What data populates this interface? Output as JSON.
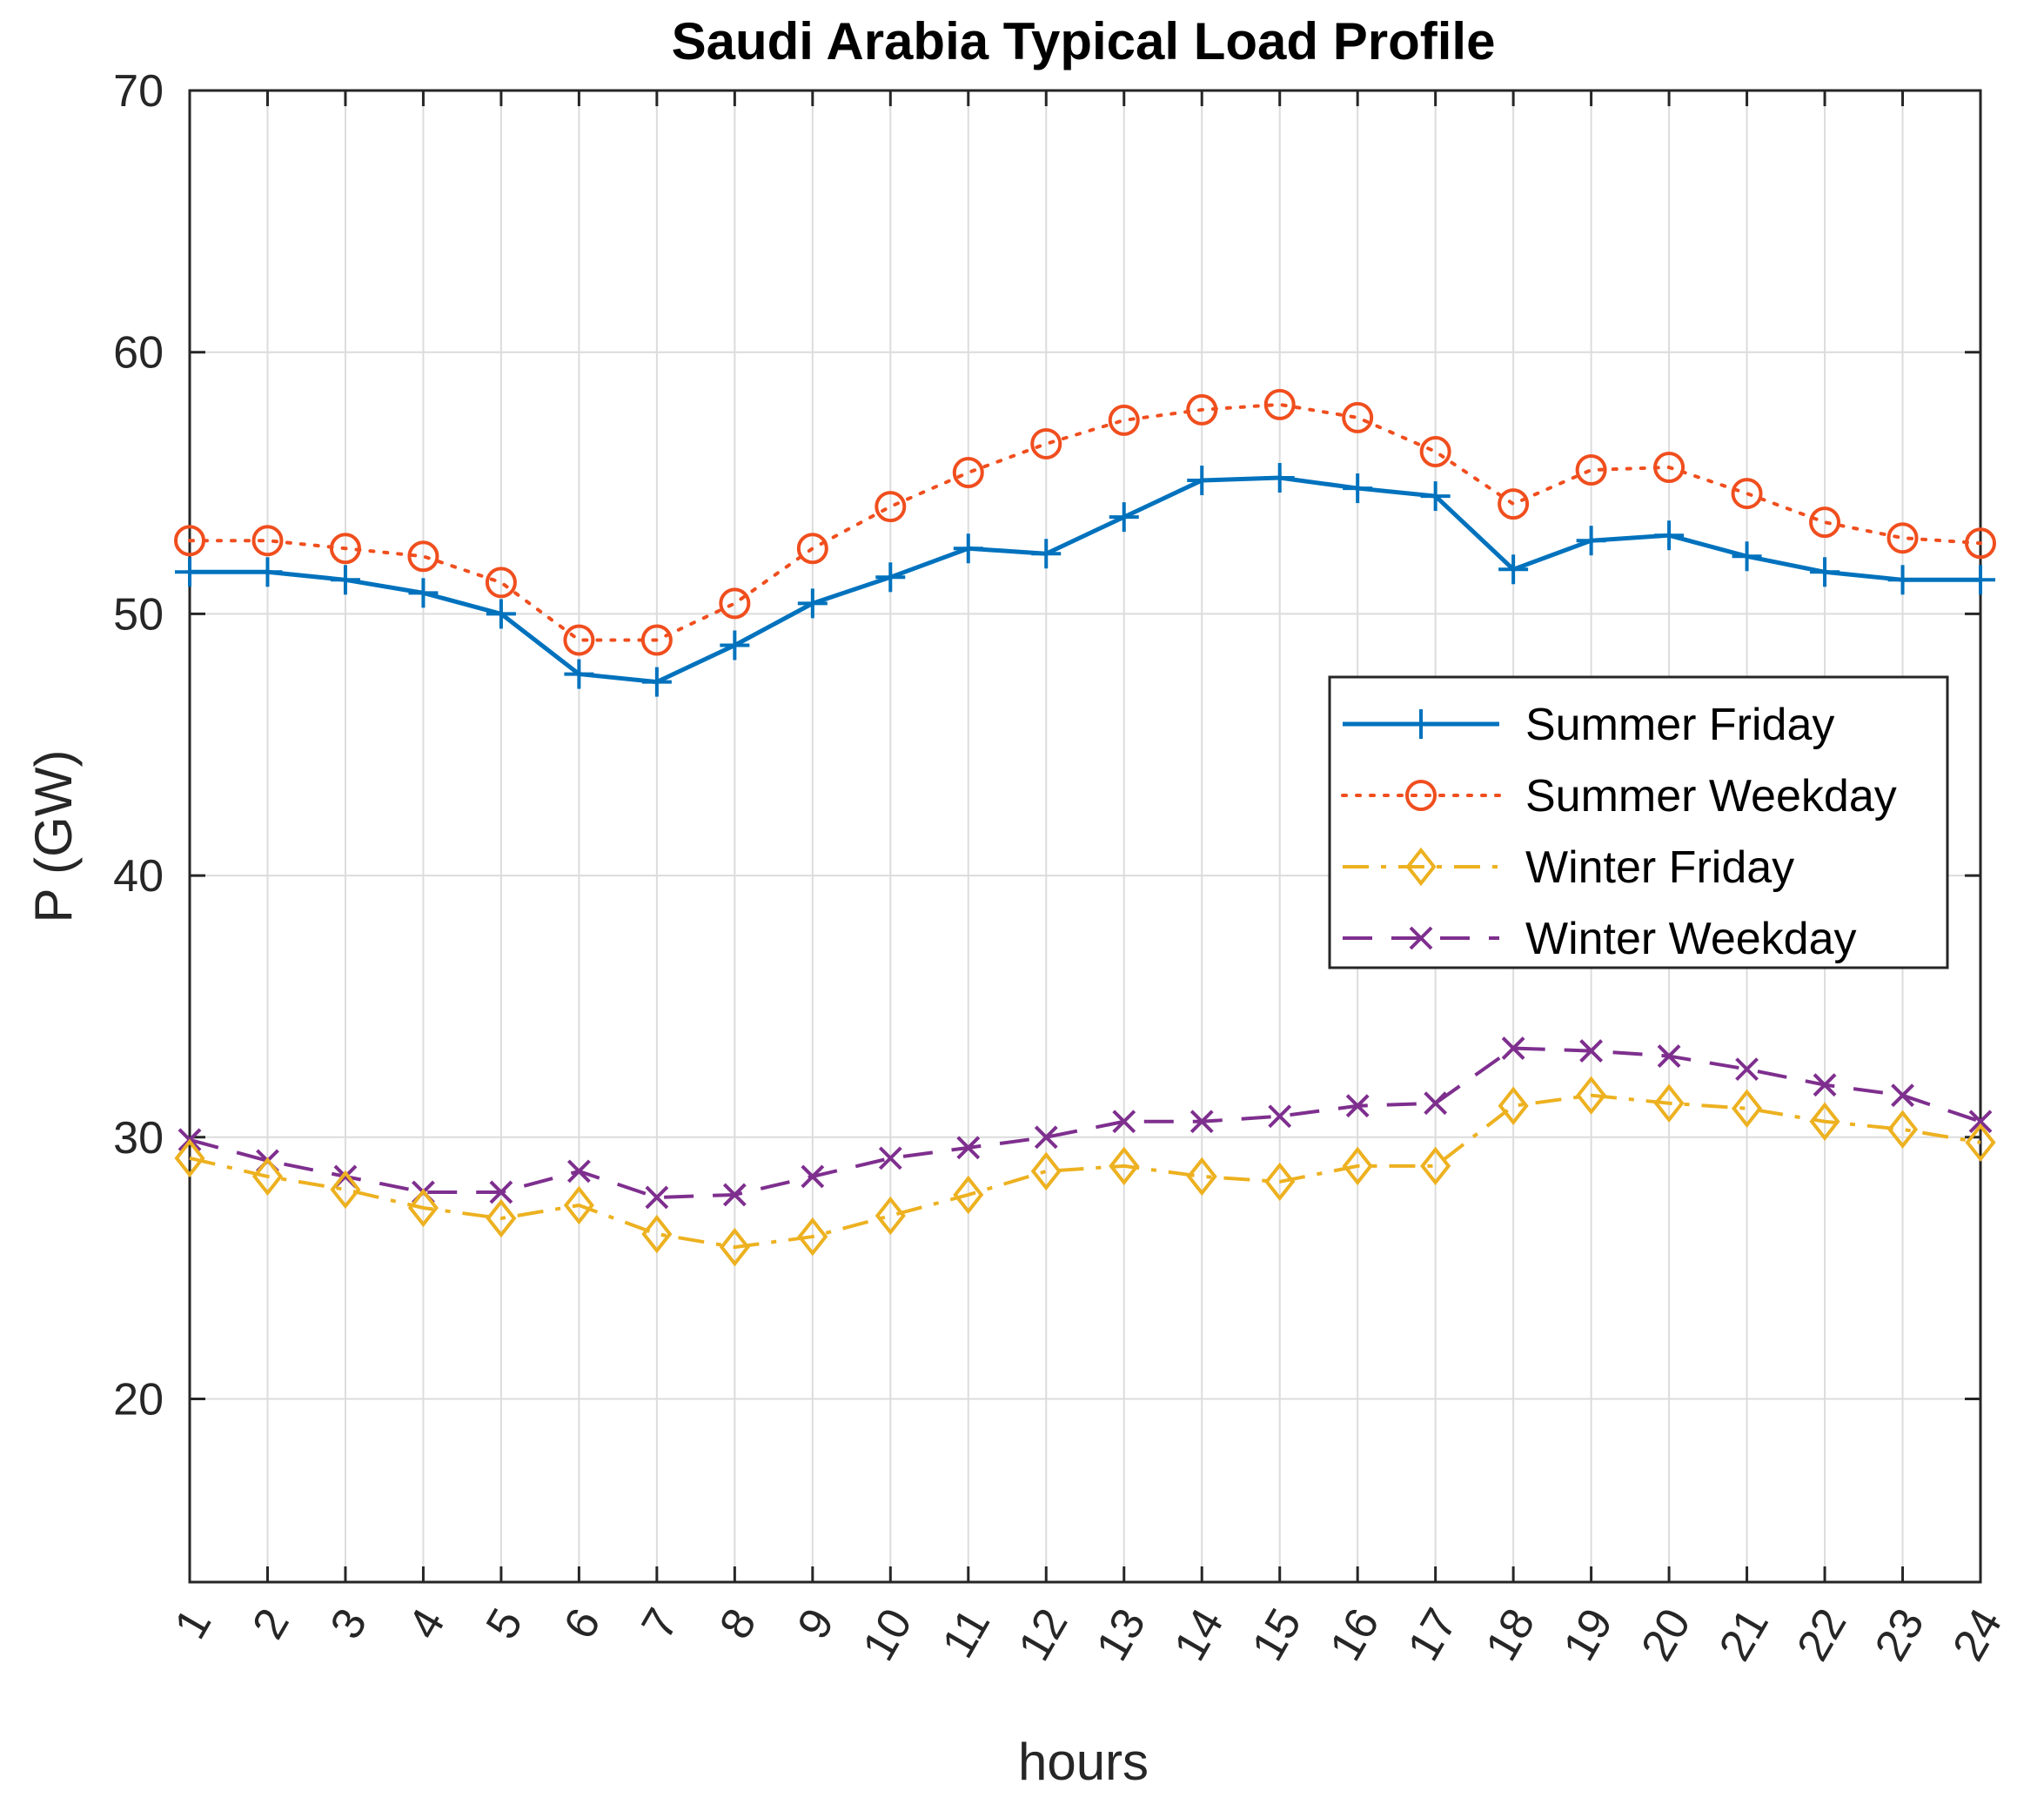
{
  "chart_data": {
    "type": "line",
    "title": "Saudi Arabia Typical Load Profile",
    "xlabel": "hours",
    "ylabel": "P (GW)",
    "xlim": [
      1,
      24
    ],
    "ylim": [
      13,
      70
    ],
    "grid": true,
    "legend_position": "center-right",
    "x": [
      1,
      2,
      3,
      4,
      5,
      6,
      7,
      8,
      9,
      10,
      11,
      12,
      13,
      14,
      15,
      16,
      17,
      18,
      19,
      20,
      21,
      22,
      23,
      24
    ],
    "x_tick_labels": [
      "1",
      "2",
      "3",
      "4",
      "5",
      "6",
      "7",
      "8",
      "9",
      "10",
      "11",
      "12",
      "13",
      "14",
      "15",
      "16",
      "17",
      "18",
      "19",
      "20",
      "21",
      "22",
      "23",
      "24"
    ],
    "y_ticks": [
      20,
      30,
      40,
      50,
      60,
      70
    ],
    "y_tick_labels": [
      "20",
      "30",
      "40",
      "50",
      "60",
      "70"
    ],
    "series": [
      {
        "name": "Summer Friday",
        "color": "#0072BD",
        "line_style": "solid",
        "marker": "plus",
        "values": [
          51.6,
          51.6,
          51.3,
          50.8,
          50.0,
          47.7,
          47.4,
          48.8,
          50.4,
          51.4,
          52.5,
          52.3,
          53.7,
          55.1,
          55.2,
          54.8,
          54.5,
          51.7,
          52.8,
          53.0,
          52.2,
          51.6,
          51.3,
          51.3
        ]
      },
      {
        "name": "Summer Weekday",
        "color": "#F04E1E",
        "line_style": "dotted",
        "marker": "circle",
        "values": [
          52.8,
          52.8,
          52.5,
          52.2,
          51.2,
          49.0,
          49.0,
          50.4,
          52.5,
          54.1,
          55.4,
          56.5,
          57.4,
          57.8,
          58.0,
          57.5,
          56.2,
          54.2,
          55.5,
          55.6,
          54.6,
          53.5,
          52.9,
          52.7
        ]
      },
      {
        "name": "Winter Friday",
        "color": "#EDB120",
        "line_style": "dashdot",
        "marker": "diamond",
        "values": [
          29.2,
          28.5,
          28.0,
          27.3,
          26.9,
          27.4,
          26.3,
          25.8,
          26.2,
          27.0,
          27.8,
          28.7,
          28.9,
          28.5,
          28.3,
          28.9,
          28.9,
          31.2,
          31.6,
          31.3,
          31.1,
          30.6,
          30.3,
          29.8
        ]
      },
      {
        "name": "Winter Weekday",
        "color": "#7E2F8E",
        "line_style": "dashed",
        "marker": "x",
        "values": [
          29.9,
          29.1,
          28.5,
          27.9,
          27.9,
          28.7,
          27.7,
          27.8,
          28.5,
          29.2,
          29.6,
          30.0,
          30.6,
          30.6,
          30.8,
          31.2,
          31.3,
          33.4,
          33.3,
          33.1,
          32.6,
          32.0,
          31.6,
          30.6
        ]
      }
    ]
  }
}
